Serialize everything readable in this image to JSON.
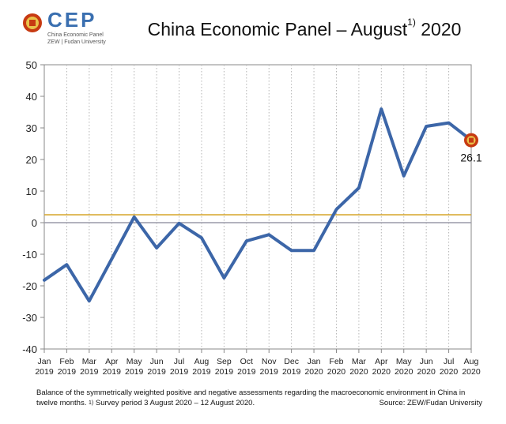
{
  "header": {
    "logo_text": "CEP",
    "logo_sub1": "China Economic Panel",
    "logo_sub2": "ZEW | Fudan University",
    "title_main": "China Economic Panel – August",
    "title_sup": "1)",
    "title_year": " 2020"
  },
  "colors": {
    "line": "#3c66a8",
    "reference_line": "#d6a52a",
    "zero_line": "#9a9aa8",
    "marker_ring": "#c73a12",
    "marker_fill": "#e9c24a",
    "brand": "#3a6fb0"
  },
  "chart_data": {
    "type": "line",
    "categories": [
      "Jan 2019",
      "Feb 2019",
      "Mar 2019",
      "Apr 2019",
      "May 2019",
      "Jun 2019",
      "Jul 2019",
      "Aug 2019",
      "Sep 2019",
      "Oct 2019",
      "Nov 2019",
      "Dec 2019",
      "Jan 2020",
      "Feb 2020",
      "Mar 2020",
      "Apr 2020",
      "May 2020",
      "Jun 2020",
      "Jul 2020",
      "Aug 2020"
    ],
    "x_tick_month": [
      "Jan",
      "Feb",
      "Mar",
      "Apr",
      "May",
      "Jun",
      "Jul",
      "Aug",
      "Sep",
      "Oct",
      "Nov",
      "Dec",
      "Jan",
      "Feb",
      "Mar",
      "Apr",
      "May",
      "Jun",
      "Jul",
      "Aug"
    ],
    "x_tick_year": [
      "2019",
      "2019",
      "2019",
      "2019",
      "2019",
      "2019",
      "2019",
      "2019",
      "2019",
      "2019",
      "2019",
      "2019",
      "2020",
      "2020",
      "2020",
      "2020",
      "2020",
      "2020",
      "2020",
      "2020"
    ],
    "series": [
      {
        "values": [
          -18.2,
          -13.3,
          -24.8,
          -11.5,
          1.8,
          -8.0,
          -0.2,
          -4.8,
          -17.5,
          -5.8,
          -3.8,
          -8.8,
          -8.8,
          4.2,
          11.0,
          36.0,
          14.8,
          30.5,
          31.6,
          26.1
        ]
      }
    ],
    "reference_value": 2.5,
    "last_label": "26.1",
    "ylim": [
      -40,
      50
    ],
    "yticks": [
      -40,
      -30,
      -20,
      -10,
      0,
      10,
      20,
      30,
      40,
      50
    ],
    "grid": "vertical dotted",
    "xlabel": "",
    "ylabel": ""
  },
  "footer": {
    "note_line1": "Balance of the symmetrically weighted positive and negative assessments regarding the macroeconomic environment in China in",
    "note_line2a": "twelve months. ",
    "note_sup": "1)",
    "note_line2b": " Survey period 3 August 2020 – 12 August 2020.",
    "source": "Source: ZEW/Fudan University"
  }
}
